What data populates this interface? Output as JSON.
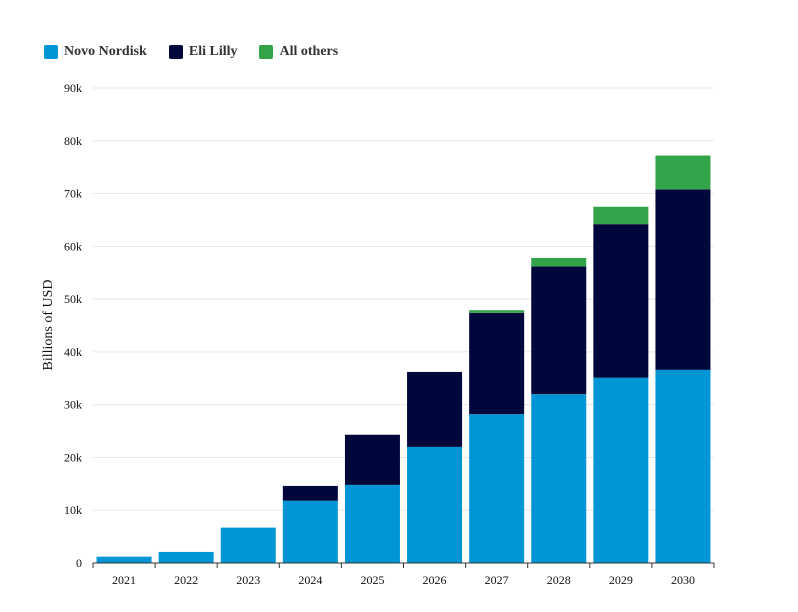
{
  "legend": {
    "items": [
      {
        "label": "Novo Nordisk",
        "color": "#0096d6"
      },
      {
        "label": "Eli Lilly",
        "color": "#00083b"
      },
      {
        "label": "All others",
        "color": "#34a44a"
      }
    ]
  },
  "chart_data": {
    "type": "bar",
    "stacked": true,
    "categories": [
      "2021",
      "2022",
      "2023",
      "2024",
      "2025",
      "2026",
      "2027",
      "2028",
      "2029",
      "2030"
    ],
    "series": [
      {
        "name": "Novo Nordisk",
        "color": "#0096d6",
        "values": [
          1200,
          2100,
          6700,
          11800,
          14800,
          22000,
          28200,
          32000,
          35100,
          36600
        ]
      },
      {
        "name": "Eli Lilly",
        "color": "#00083b",
        "values": [
          0,
          0,
          0,
          2800,
          9500,
          14200,
          19200,
          24200,
          29100,
          34200
        ]
      },
      {
        "name": "All others",
        "color": "#34a44a",
        "values": [
          0,
          0,
          0,
          0,
          0,
          0,
          500,
          1600,
          3300,
          6400
        ]
      }
    ],
    "ylabel": "Billions of USD",
    "xlabel": "",
    "ylim": [
      0,
      90000
    ],
    "yticks": [
      0,
      10000,
      20000,
      30000,
      40000,
      50000,
      60000,
      70000,
      80000,
      90000
    ],
    "ytick_labels": [
      "0",
      "10k",
      "20k",
      "30k",
      "40k",
      "50k",
      "60k",
      "70k",
      "80k",
      "90k"
    ],
    "grid": true,
    "legend_position": "top-left"
  }
}
